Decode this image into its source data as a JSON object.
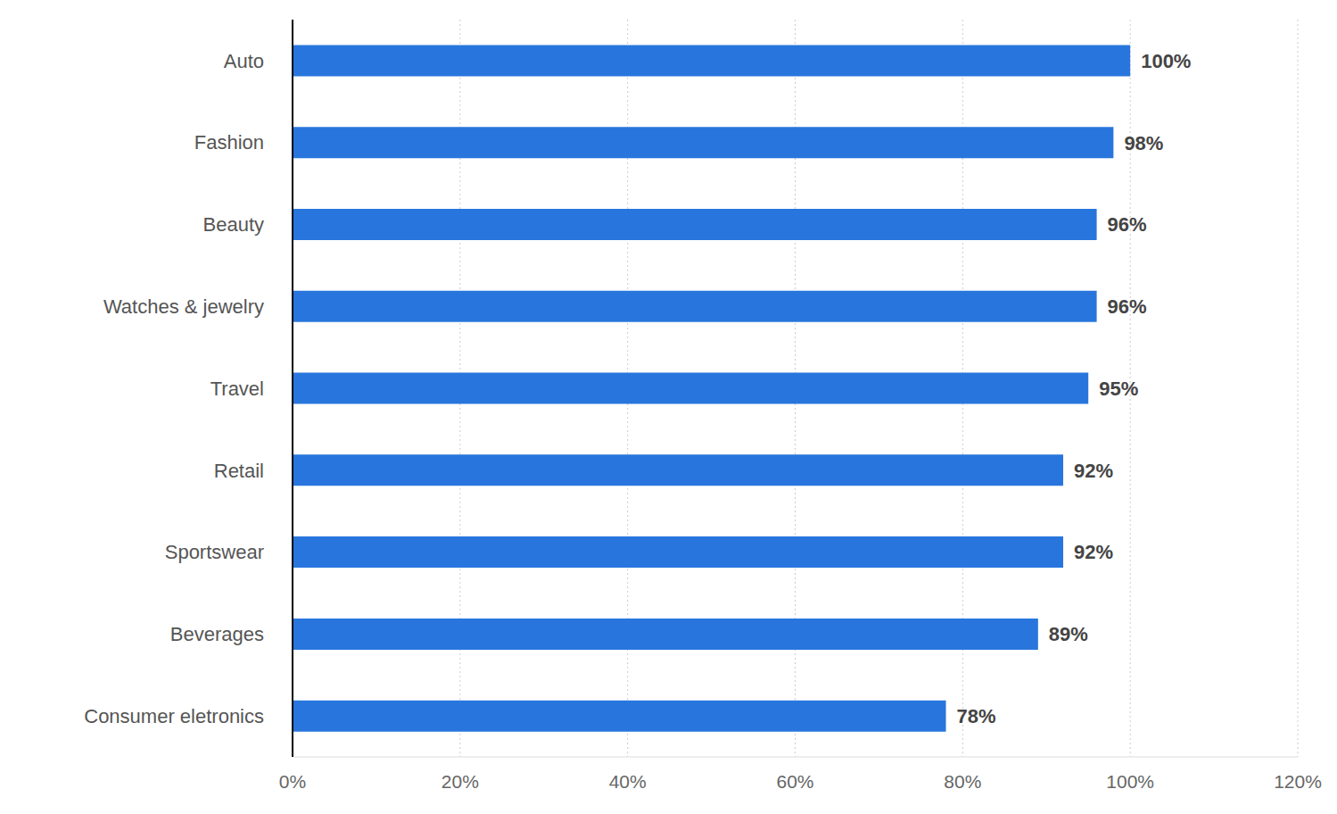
{
  "chart_data": {
    "type": "bar",
    "orientation": "horizontal",
    "categories": [
      "Auto",
      "Fashion",
      "Beauty",
      "Watches & jewelry",
      "Travel",
      "Retail",
      "Sportswear",
      "Beverages",
      "Consumer eletronics"
    ],
    "values": [
      100,
      98,
      96,
      96,
      95,
      92,
      92,
      89,
      78
    ],
    "value_labels": [
      "100%",
      "98%",
      "96%",
      "96%",
      "95%",
      "92%",
      "92%",
      "89%",
      "78%"
    ],
    "data_labels": true,
    "color": "#2876dd",
    "xlim": [
      0,
      120
    ],
    "xticks": [
      {
        "value": 0,
        "label": "0%"
      },
      {
        "value": 20,
        "label": "20%"
      },
      {
        "value": 40,
        "label": "40%"
      },
      {
        "value": 60,
        "label": "60%"
      },
      {
        "value": 80,
        "label": "80%"
      },
      {
        "value": 100,
        "label": "100%"
      },
      {
        "value": 120,
        "label": "120%"
      }
    ],
    "grid": true
  }
}
